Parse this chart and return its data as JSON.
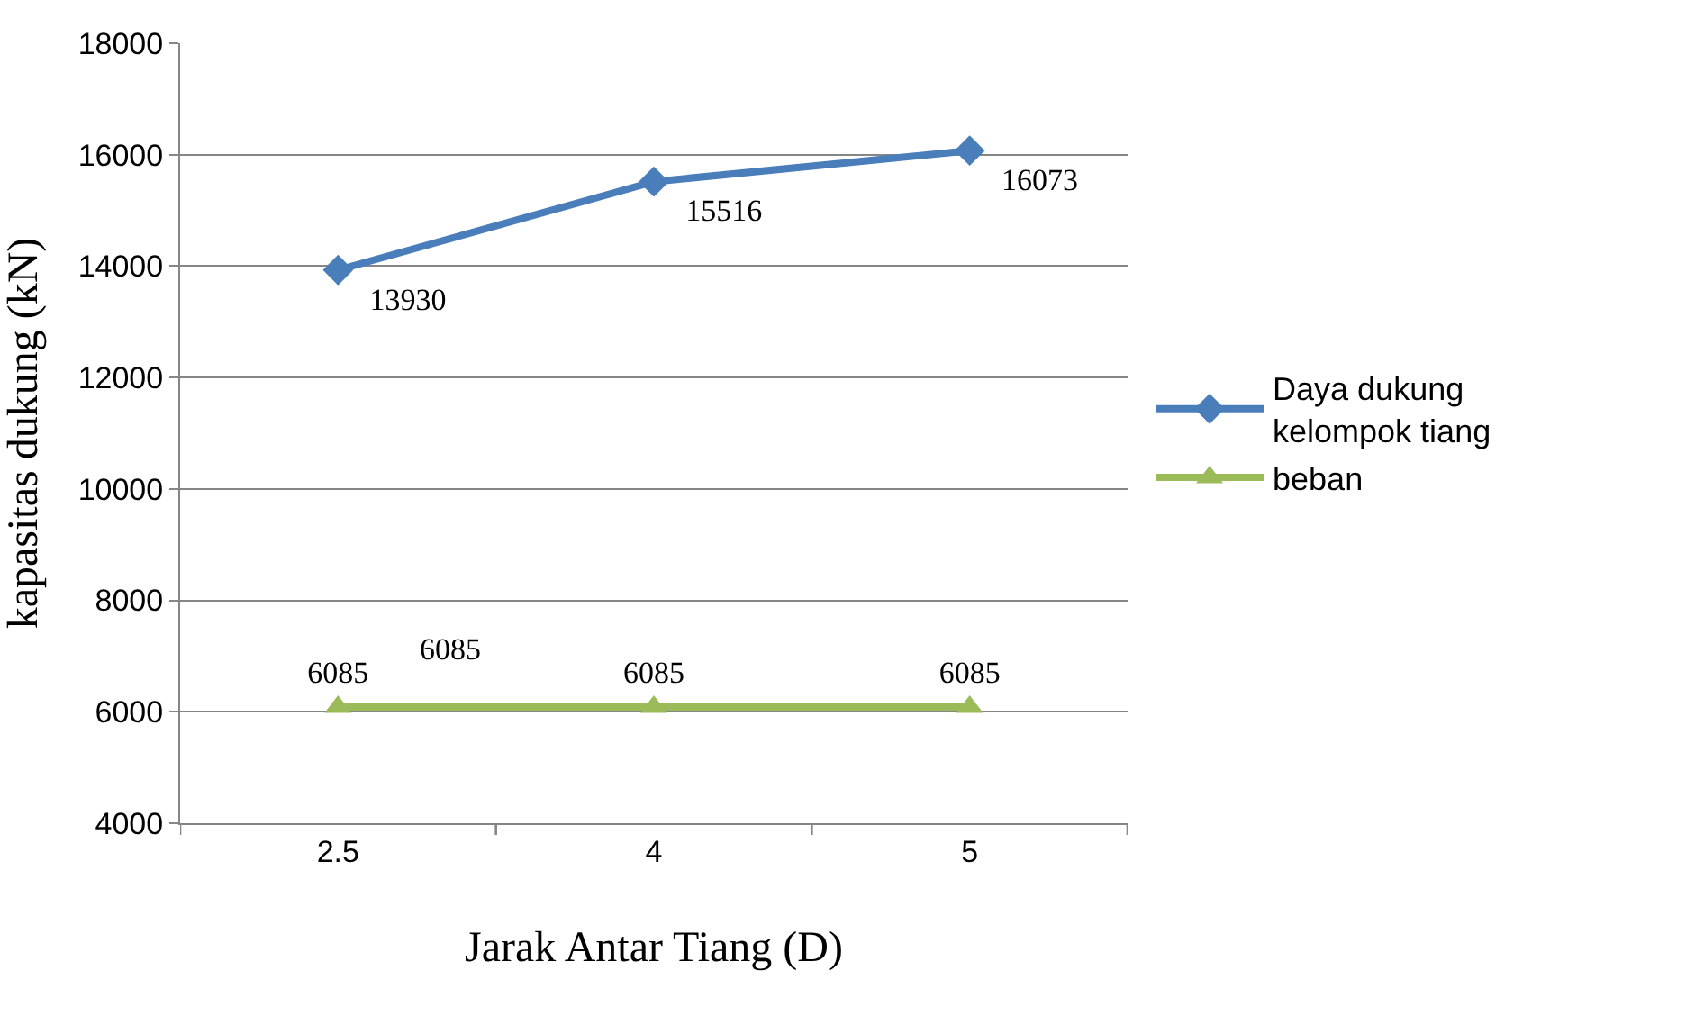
{
  "chart_data": {
    "type": "line",
    "xlabel": "Jarak Antar Tiang (D)",
    "ylabel": "kapasitas dukung (kN)",
    "categories": [
      "2.5",
      "4",
      "5"
    ],
    "series": [
      {
        "name": "Daya dukung\nkelompok tiang",
        "color": "#4a7ebb",
        "values": [
          13930,
          15516,
          16073
        ],
        "marker": "diamond",
        "value_labels": [
          "13930",
          "15516",
          "16073"
        ]
      },
      {
        "name": "beban",
        "color": "#9bbb59",
        "values": [
          6085,
          6085,
          6085
        ],
        "marker": "triangle",
        "value_labels": [
          "6085",
          "6085",
          "6085"
        ]
      }
    ],
    "annotations": [
      "6085"
    ],
    "ylim": [
      4000,
      18000
    ],
    "yticks": [
      4000,
      6000,
      8000,
      10000,
      12000,
      14000,
      16000,
      18000
    ],
    "grid": "y",
    "legend": "right",
    "line_style": "solid"
  }
}
